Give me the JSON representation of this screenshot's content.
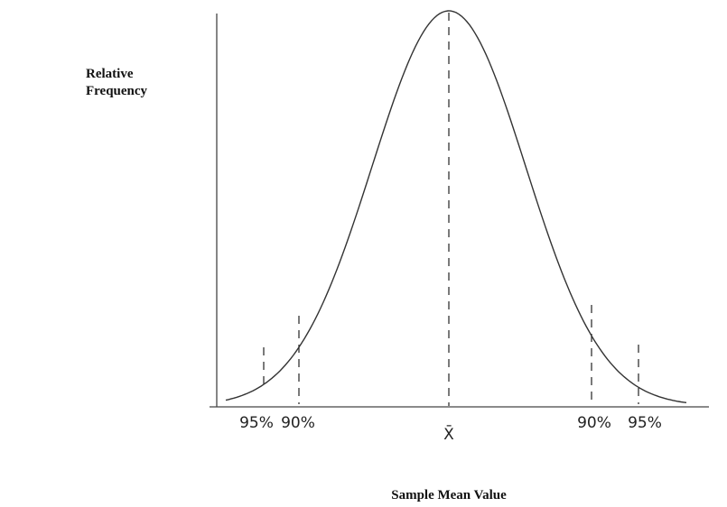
{
  "y_label": [
    "Relative",
    "Frequency"
  ],
  "x_label": "Sample Mean Value",
  "markers": [
    {
      "label": "95%"
    },
    {
      "label": "90%"
    },
    {
      "label": "X̄"
    },
    {
      "label": "90%"
    },
    {
      "label": "95%"
    }
  ]
}
